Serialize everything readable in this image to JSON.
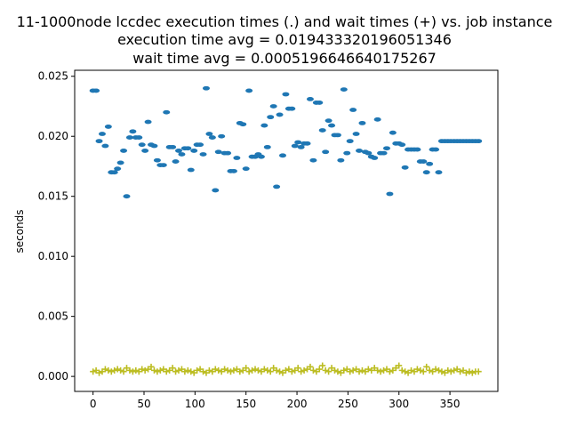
{
  "chart_data": {
    "type": "scatter",
    "title": [
      "11-1000node lccdec execution times (.) and wait times (+) vs. job instance",
      "execution time avg = 0.019433320196051346",
      "wait time avg = 0.0005196646640175267"
    ],
    "xlabel": "",
    "ylabel": "seconds",
    "xlim": [
      -18,
      397
    ],
    "ylim": [
      -0.00125,
      0.0255
    ],
    "xticks": [
      0,
      50,
      100,
      150,
      200,
      250,
      300,
      350
    ],
    "xtick_labels": [
      "0",
      "50",
      "100",
      "150",
      "200",
      "250",
      "300",
      "350"
    ],
    "yticks": [
      0.0,
      0.005,
      0.01,
      0.015,
      0.02,
      0.025
    ],
    "ytick_labels": [
      "0.000",
      "0.005",
      "0.010",
      "0.015",
      "0.020",
      "0.025"
    ],
    "grid": false,
    "legend": "none",
    "colors": {
      "execution": "#1f77b4",
      "wait": "#bcbd22"
    },
    "series": [
      {
        "marker": ".",
        "x": [
          0,
          3,
          6,
          9,
          12,
          15,
          18,
          21,
          24,
          27,
          30,
          33,
          36,
          39,
          42,
          45,
          48,
          51,
          54,
          57,
          60,
          63,
          66,
          69,
          72,
          75,
          78,
          81,
          84,
          87,
          90,
          93,
          96,
          99,
          102,
          105,
          108,
          111,
          114,
          117,
          120,
          123,
          126,
          129,
          132,
          135,
          138,
          141,
          144,
          147,
          150,
          153,
          156,
          159,
          162,
          165,
          168,
          171,
          174,
          177,
          180,
          183,
          186,
          189,
          192,
          195,
          198,
          201,
          204,
          207,
          210,
          213,
          216,
          219,
          222,
          225,
          228,
          231,
          234,
          237,
          240,
          243,
          246,
          249,
          252,
          255,
          258,
          261,
          264,
          267,
          270,
          273,
          276,
          279,
          282,
          285,
          288,
          291,
          294,
          297,
          300,
          303,
          306,
          309,
          312,
          315,
          318,
          321,
          324,
          327,
          330,
          333,
          336,
          339,
          342,
          345,
          348,
          351,
          354,
          357,
          360,
          363,
          366,
          369,
          372,
          375,
          378
        ],
        "values": [
          0.0238,
          0.0238,
          0.0196,
          0.0202,
          0.0192,
          0.0208,
          0.017,
          0.017,
          0.0173,
          0.0178,
          0.0188,
          0.015,
          0.0199,
          0.0204,
          0.0199,
          0.0199,
          0.0193,
          0.0188,
          0.0212,
          0.0193,
          0.0192,
          0.018,
          0.0176,
          0.0176,
          0.022,
          0.0191,
          0.0191,
          0.0179,
          0.0188,
          0.0185,
          0.019,
          0.019,
          0.0172,
          0.0188,
          0.0193,
          0.0193,
          0.0185,
          0.024,
          0.0202,
          0.0199,
          0.0155,
          0.0187,
          0.02,
          0.0186,
          0.0186,
          0.0171,
          0.0171,
          0.0182,
          0.0211,
          0.021,
          0.0173,
          0.0238,
          0.0183,
          0.0183,
          0.0185,
          0.0183,
          0.0209,
          0.0191,
          0.0216,
          0.0225,
          0.0158,
          0.0218,
          0.0184,
          0.0235,
          0.0223,
          0.0223,
          0.0192,
          0.0195,
          0.0191,
          0.0194,
          0.0194,
          0.0231,
          0.018,
          0.0228,
          0.0228,
          0.0205,
          0.0187,
          0.0213,
          0.0209,
          0.0201,
          0.0201,
          0.018,
          0.0239,
          0.0186,
          0.0196,
          0.0222,
          0.0202,
          0.0188,
          0.0211,
          0.0187,
          0.0186,
          0.0183,
          0.0182,
          0.0214,
          0.0186,
          0.0186,
          0.019,
          0.0152,
          0.0203,
          0.0194,
          0.0194,
          0.0193,
          0.0174,
          0.0189,
          0.0189,
          0.0189,
          0.0189,
          0.0179,
          0.0179,
          0.017,
          0.0177,
          0.0189,
          0.0189,
          0.017,
          0.0196,
          0.0196,
          0.0196,
          0.0196,
          0.0196,
          0.0196,
          0.0196,
          0.0196,
          0.0196,
          0.0196,
          0.0196,
          0.0196,
          0.0196
        ]
      },
      {
        "marker": "+",
        "x": [
          0,
          3,
          6,
          9,
          12,
          15,
          18,
          21,
          24,
          27,
          30,
          33,
          36,
          39,
          42,
          45,
          48,
          51,
          54,
          57,
          60,
          63,
          66,
          69,
          72,
          75,
          78,
          81,
          84,
          87,
          90,
          93,
          96,
          99,
          102,
          105,
          108,
          111,
          114,
          117,
          120,
          123,
          126,
          129,
          132,
          135,
          138,
          141,
          144,
          147,
          150,
          153,
          156,
          159,
          162,
          165,
          168,
          171,
          174,
          177,
          180,
          183,
          186,
          189,
          192,
          195,
          198,
          201,
          204,
          207,
          210,
          213,
          216,
          219,
          222,
          225,
          228,
          231,
          234,
          237,
          240,
          243,
          246,
          249,
          252,
          255,
          258,
          261,
          264,
          267,
          270,
          273,
          276,
          279,
          282,
          285,
          288,
          291,
          294,
          297,
          300,
          303,
          306,
          309,
          312,
          315,
          318,
          321,
          324,
          327,
          330,
          333,
          336,
          339,
          342,
          345,
          348,
          351,
          354,
          357,
          360,
          363,
          366,
          369,
          372,
          375,
          378
        ],
        "values": [
          0.0004,
          0.0005,
          0.0003,
          0.0004,
          0.0006,
          0.0005,
          0.0004,
          0.0005,
          0.0006,
          0.0005,
          0.0004,
          0.0007,
          0.0005,
          0.0004,
          0.0005,
          0.0004,
          0.0006,
          0.0005,
          0.0006,
          0.0008,
          0.0005,
          0.0004,
          0.0005,
          0.0006,
          0.0004,
          0.0005,
          0.0007,
          0.0004,
          0.0005,
          0.0006,
          0.0004,
          0.0005,
          0.0004,
          0.0003,
          0.0005,
          0.0006,
          0.0004,
          0.0003,
          0.0005,
          0.0004,
          0.0006,
          0.0005,
          0.0004,
          0.0006,
          0.0005,
          0.0004,
          0.0005,
          0.0006,
          0.0004,
          0.0005,
          0.0007,
          0.0004,
          0.0005,
          0.0006,
          0.0005,
          0.0004,
          0.0006,
          0.0005,
          0.0004,
          0.0007,
          0.0005,
          0.0004,
          0.0003,
          0.0005,
          0.0006,
          0.0004,
          0.0005,
          0.0007,
          0.0004,
          0.0005,
          0.0006,
          0.0008,
          0.0005,
          0.0004,
          0.0006,
          0.0009,
          0.0005,
          0.0004,
          0.0007,
          0.0005,
          0.0004,
          0.0003,
          0.0005,
          0.0006,
          0.0004,
          0.0005,
          0.0006,
          0.0004,
          0.0005,
          0.0004,
          0.0006,
          0.0005,
          0.0007,
          0.0005,
          0.0004,
          0.0005,
          0.0006,
          0.0004,
          0.0005,
          0.0007,
          0.0009,
          0.0005,
          0.0004,
          0.0003,
          0.0005,
          0.0004,
          0.0006,
          0.0005,
          0.0004,
          0.0008,
          0.0005,
          0.0004,
          0.0006,
          0.0005,
          0.0004,
          0.0003,
          0.0005,
          0.0004,
          0.0005,
          0.0006,
          0.0004,
          0.0005,
          0.0003,
          0.0004,
          0.0003,
          0.0004,
          0.0004
        ]
      }
    ]
  }
}
